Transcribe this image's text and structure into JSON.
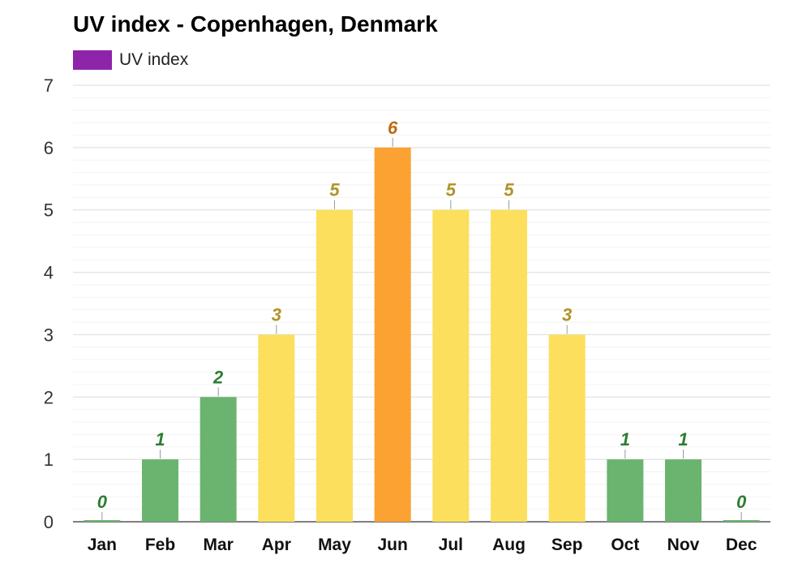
{
  "chart_data": {
    "type": "bar",
    "title": "UV index - Copenhagen, Denmark",
    "xlabel": "",
    "ylabel": "",
    "categories": [
      "Jan",
      "Feb",
      "Mar",
      "Apr",
      "May",
      "Jun",
      "Jul",
      "Aug",
      "Sep",
      "Oct",
      "Nov",
      "Dec"
    ],
    "series": [
      {
        "name": "UV index",
        "values": [
          0,
          1,
          2,
          3,
          5,
          6,
          5,
          5,
          3,
          1,
          1,
          0
        ]
      }
    ],
    "ylim": [
      0,
      7
    ],
    "yticks": [
      0,
      1,
      2,
      3,
      4,
      5,
      6,
      7
    ],
    "grid": true,
    "legend_position": "top-left",
    "legend_color": "#8e24aa",
    "level_colors": {
      "low": {
        "fill": "#6ab46f",
        "label": "#2e7d32",
        "range": [
          0,
          2
        ]
      },
      "moderate": {
        "fill": "#fcdf5c",
        "label": "#b0942a",
        "range": [
          3,
          5
        ]
      },
      "high": {
        "fill": "#fba232",
        "label": "#c06a10",
        "range": [
          6,
          7
        ]
      }
    }
  }
}
